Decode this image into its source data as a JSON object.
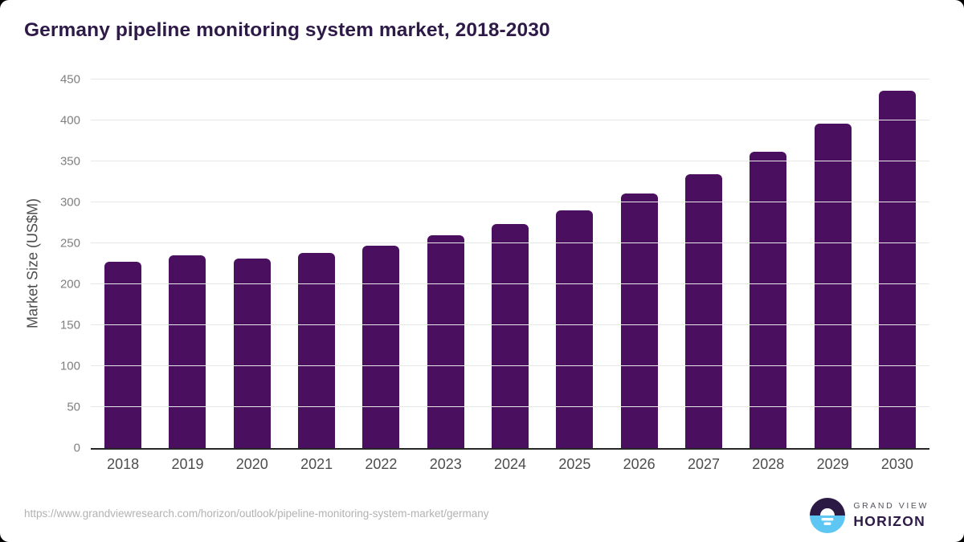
{
  "header": {
    "title": "Germany pipeline monitoring system market, 2018-2030",
    "title_color": "#2e1a47"
  },
  "chart_data": {
    "type": "bar",
    "title": "Germany pipeline monitoring system market, 2018-2030",
    "categories": [
      "2018",
      "2019",
      "2020",
      "2021",
      "2022",
      "2023",
      "2024",
      "2025",
      "2026",
      "2027",
      "2028",
      "2029",
      "2030"
    ],
    "values": [
      227,
      235,
      231,
      238,
      247,
      260,
      274,
      290,
      311,
      334,
      362,
      396,
      436
    ],
    "xlabel": "",
    "ylabel": "Market Size (US$M)",
    "ylim": [
      0,
      450
    ],
    "yticks": [
      0,
      50,
      100,
      150,
      200,
      250,
      300,
      350,
      400,
      450
    ],
    "grid": "horizontal",
    "legend": "none",
    "bar_color": "#4a105f",
    "gridline_color": "#e7e7e7",
    "axis_line_color": "#262626"
  },
  "footer": {
    "source_url": "https://www.grandviewresearch.com/horizon/outlook/pipeline-monitoring-system-market/germany",
    "logo": {
      "icon": "horizon-sun-icon",
      "top_text": "GRAND VIEW",
      "bottom_text": "HORIZON",
      "icon_dark_color": "#2b1b44",
      "icon_blue_color": "#5ec6f2"
    }
  }
}
